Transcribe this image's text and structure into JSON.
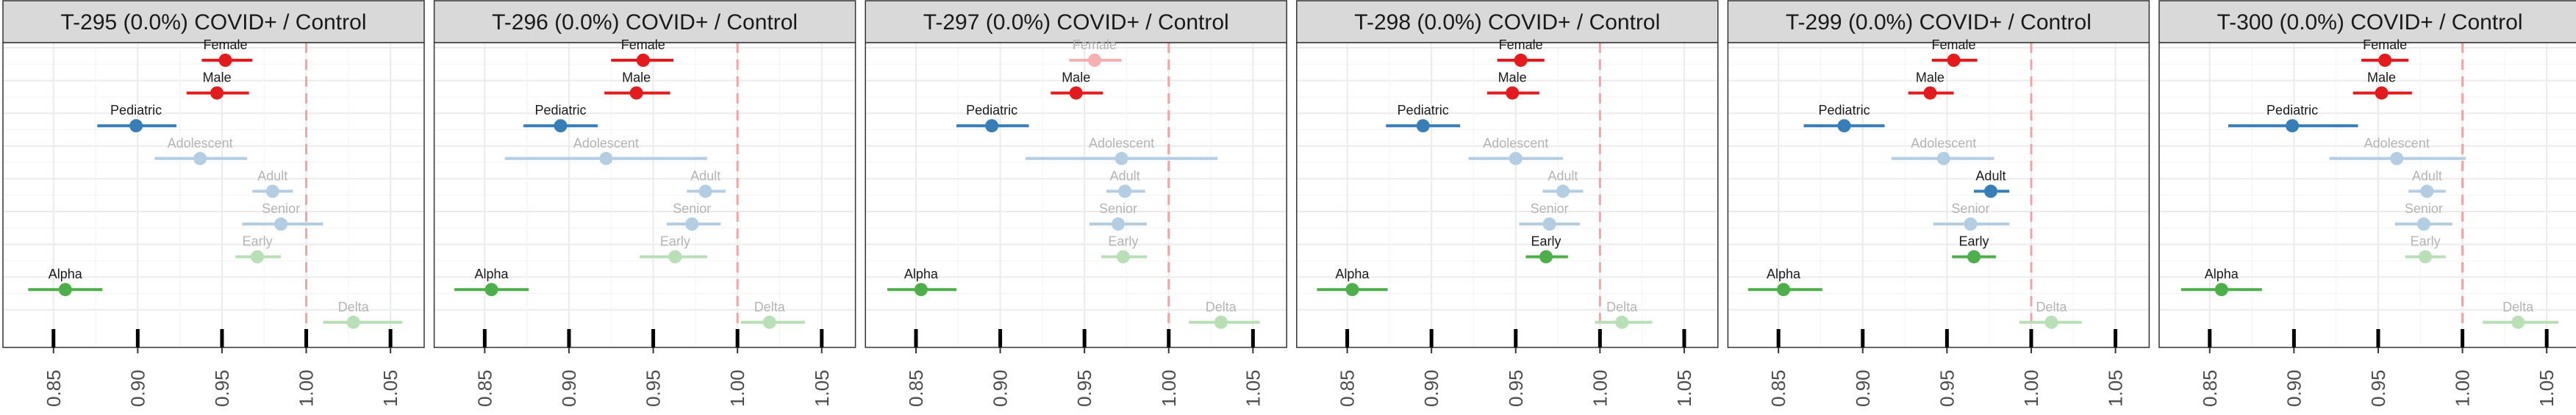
{
  "colors": {
    "red": "#e41a1c",
    "blue": "#377eb8",
    "green": "#4daf4a",
    "refline": "#f4a3a4",
    "strip": "#d9d9d9",
    "grid": "#ebebeb"
  },
  "chart_data": [
    {
      "type": "scatter",
      "title": "T-295 (0.0%) COVID+ / Control",
      "xlim": [
        0.82,
        1.07
      ],
      "x_ticks": [
        "0.85",
        "0.90",
        "0.95",
        "1.00",
        "1.05"
      ],
      "reference_line": 1.0,
      "rows": [
        {
          "label": "Female",
          "est": 0.952,
          "lo": 0.938,
          "hi": 0.968,
          "color": "red",
          "faded": false
        },
        {
          "label": "Male",
          "est": 0.947,
          "lo": 0.929,
          "hi": 0.966,
          "color": "red",
          "faded": false
        },
        {
          "label": "Pediatric",
          "est": 0.899,
          "lo": 0.876,
          "hi": 0.923,
          "color": "blue",
          "faded": false
        },
        {
          "label": "Adolescent",
          "est": 0.937,
          "lo": 0.91,
          "hi": 0.965,
          "color": "blue",
          "faded": true
        },
        {
          "label": "Adult",
          "est": 0.98,
          "lo": 0.968,
          "hi": 0.992,
          "color": "blue",
          "faded": true
        },
        {
          "label": "Senior",
          "est": 0.985,
          "lo": 0.962,
          "hi": 1.01,
          "color": "blue",
          "faded": true
        },
        {
          "label": "Early",
          "est": 0.971,
          "lo": 0.958,
          "hi": 0.985,
          "color": "green",
          "faded": true
        },
        {
          "label": "Alpha",
          "est": 0.857,
          "lo": 0.835,
          "hi": 0.879,
          "color": "green",
          "faded": false
        },
        {
          "label": "Delta",
          "est": 1.028,
          "lo": 1.01,
          "hi": 1.057,
          "color": "green",
          "faded": true
        }
      ]
    },
    {
      "type": "scatter",
      "title": "T-296 (0.0%) COVID+ / Control",
      "xlim": [
        0.82,
        1.07
      ],
      "x_ticks": [
        "0.85",
        "0.90",
        "0.95",
        "1.00",
        "1.05"
      ],
      "reference_line": 1.0,
      "rows": [
        {
          "label": "Female",
          "est": 0.944,
          "lo": 0.925,
          "hi": 0.962,
          "color": "red",
          "faded": false
        },
        {
          "label": "Male",
          "est": 0.94,
          "lo": 0.921,
          "hi": 0.96,
          "color": "red",
          "faded": false
        },
        {
          "label": "Pediatric",
          "est": 0.895,
          "lo": 0.873,
          "hi": 0.917,
          "color": "blue",
          "faded": false
        },
        {
          "label": "Adolescent",
          "est": 0.922,
          "lo": 0.862,
          "hi": 0.982,
          "color": "blue",
          "faded": true
        },
        {
          "label": "Adult",
          "est": 0.981,
          "lo": 0.97,
          "hi": 0.993,
          "color": "blue",
          "faded": true
        },
        {
          "label": "Senior",
          "est": 0.973,
          "lo": 0.958,
          "hi": 0.99,
          "color": "blue",
          "faded": true
        },
        {
          "label": "Early",
          "est": 0.963,
          "lo": 0.942,
          "hi": 0.982,
          "color": "green",
          "faded": true
        },
        {
          "label": "Alpha",
          "est": 0.854,
          "lo": 0.832,
          "hi": 0.876,
          "color": "green",
          "faded": false
        },
        {
          "label": "Delta",
          "est": 1.019,
          "lo": 1.002,
          "hi": 1.04,
          "color": "green",
          "faded": true
        }
      ]
    },
    {
      "type": "scatter",
      "title": "T-297 (0.0%) COVID+ / Control",
      "xlim": [
        0.82,
        1.07
      ],
      "x_ticks": [
        "0.85",
        "0.90",
        "0.95",
        "1.00",
        "1.05"
      ],
      "reference_line": 1.0,
      "rows": [
        {
          "label": "Female",
          "est": 0.956,
          "lo": 0.941,
          "hi": 0.972,
          "color": "red",
          "faded": true
        },
        {
          "label": "Male",
          "est": 0.945,
          "lo": 0.93,
          "hi": 0.961,
          "color": "red",
          "faded": false
        },
        {
          "label": "Pediatric",
          "est": 0.895,
          "lo": 0.874,
          "hi": 0.917,
          "color": "blue",
          "faded": false
        },
        {
          "label": "Adolescent",
          "est": 0.972,
          "lo": 0.915,
          "hi": 1.029,
          "color": "blue",
          "faded": true
        },
        {
          "label": "Adult",
          "est": 0.974,
          "lo": 0.963,
          "hi": 0.986,
          "color": "blue",
          "faded": true
        },
        {
          "label": "Senior",
          "est": 0.97,
          "lo": 0.953,
          "hi": 0.987,
          "color": "blue",
          "faded": true
        },
        {
          "label": "Early",
          "est": 0.973,
          "lo": 0.96,
          "hi": 0.987,
          "color": "green",
          "faded": true
        },
        {
          "label": "Alpha",
          "est": 0.853,
          "lo": 0.833,
          "hi": 0.874,
          "color": "green",
          "faded": false
        },
        {
          "label": "Delta",
          "est": 1.031,
          "lo": 1.012,
          "hi": 1.054,
          "color": "green",
          "faded": true
        }
      ]
    },
    {
      "type": "scatter",
      "title": "T-298 (0.0%) COVID+ / Control",
      "xlim": [
        0.82,
        1.07
      ],
      "x_ticks": [
        "0.85",
        "0.90",
        "0.95",
        "1.00",
        "1.05"
      ],
      "reference_line": 1.0,
      "rows": [
        {
          "label": "Female",
          "est": 0.953,
          "lo": 0.939,
          "hi": 0.967,
          "color": "red",
          "faded": false
        },
        {
          "label": "Male",
          "est": 0.948,
          "lo": 0.933,
          "hi": 0.964,
          "color": "red",
          "faded": false
        },
        {
          "label": "Pediatric",
          "est": 0.895,
          "lo": 0.873,
          "hi": 0.917,
          "color": "blue",
          "faded": false
        },
        {
          "label": "Adolescent",
          "est": 0.95,
          "lo": 0.922,
          "hi": 0.978,
          "color": "blue",
          "faded": true
        },
        {
          "label": "Adult",
          "est": 0.978,
          "lo": 0.966,
          "hi": 0.99,
          "color": "blue",
          "faded": true
        },
        {
          "label": "Senior",
          "est": 0.97,
          "lo": 0.952,
          "hi": 0.988,
          "color": "blue",
          "faded": true
        },
        {
          "label": "Early",
          "est": 0.968,
          "lo": 0.956,
          "hi": 0.981,
          "color": "green",
          "faded": false
        },
        {
          "label": "Alpha",
          "est": 0.853,
          "lo": 0.832,
          "hi": 0.874,
          "color": "green",
          "faded": false
        },
        {
          "label": "Delta",
          "est": 1.013,
          "lo": 0.997,
          "hi": 1.031,
          "color": "green",
          "faded": true
        }
      ]
    },
    {
      "type": "scatter",
      "title": "T-299 (0.0%) COVID+ / Control",
      "xlim": [
        0.82,
        1.07
      ],
      "x_ticks": [
        "0.85",
        "0.90",
        "0.95",
        "1.00",
        "1.05"
      ],
      "reference_line": 1.0,
      "rows": [
        {
          "label": "Female",
          "est": 0.954,
          "lo": 0.941,
          "hi": 0.968,
          "color": "red",
          "faded": false
        },
        {
          "label": "Male",
          "est": 0.94,
          "lo": 0.927,
          "hi": 0.954,
          "color": "red",
          "faded": false
        },
        {
          "label": "Pediatric",
          "est": 0.889,
          "lo": 0.865,
          "hi": 0.913,
          "color": "blue",
          "faded": false
        },
        {
          "label": "Adolescent",
          "est": 0.948,
          "lo": 0.917,
          "hi": 0.978,
          "color": "blue",
          "faded": true
        },
        {
          "label": "Adult",
          "est": 0.976,
          "lo": 0.966,
          "hi": 0.987,
          "color": "blue",
          "faded": false
        },
        {
          "label": "Senior",
          "est": 0.964,
          "lo": 0.942,
          "hi": 0.987,
          "color": "blue",
          "faded": true
        },
        {
          "label": "Early",
          "est": 0.966,
          "lo": 0.953,
          "hi": 0.979,
          "color": "green",
          "faded": false
        },
        {
          "label": "Alpha",
          "est": 0.853,
          "lo": 0.832,
          "hi": 0.876,
          "color": "green",
          "faded": false
        },
        {
          "label": "Delta",
          "est": 1.012,
          "lo": 0.993,
          "hi": 1.03,
          "color": "green",
          "faded": true
        }
      ]
    },
    {
      "type": "scatter",
      "title": "T-300 (0.0%) COVID+ / Control",
      "xlim": [
        0.82,
        1.07
      ],
      "x_ticks": [
        "0.85",
        "0.90",
        "0.95",
        "1.00",
        "1.05"
      ],
      "reference_line": 1.0,
      "rows": [
        {
          "label": "Female",
          "est": 0.954,
          "lo": 0.94,
          "hi": 0.968,
          "color": "red",
          "faded": false
        },
        {
          "label": "Male",
          "est": 0.952,
          "lo": 0.935,
          "hi": 0.97,
          "color": "red",
          "faded": false
        },
        {
          "label": "Pediatric",
          "est": 0.899,
          "lo": 0.861,
          "hi": 0.938,
          "color": "blue",
          "faded": false
        },
        {
          "label": "Adolescent",
          "est": 0.961,
          "lo": 0.921,
          "hi": 1.002,
          "color": "blue",
          "faded": true
        },
        {
          "label": "Adult",
          "est": 0.979,
          "lo": 0.968,
          "hi": 0.99,
          "color": "blue",
          "faded": true
        },
        {
          "label": "Senior",
          "est": 0.977,
          "lo": 0.96,
          "hi": 0.994,
          "color": "blue",
          "faded": true
        },
        {
          "label": "Early",
          "est": 0.978,
          "lo": 0.966,
          "hi": 0.99,
          "color": "green",
          "faded": true
        },
        {
          "label": "Alpha",
          "est": 0.857,
          "lo": 0.833,
          "hi": 0.881,
          "color": "green",
          "faded": false
        },
        {
          "label": "Delta",
          "est": 1.033,
          "lo": 1.012,
          "hi": 1.057,
          "color": "green",
          "faded": true
        }
      ]
    }
  ]
}
